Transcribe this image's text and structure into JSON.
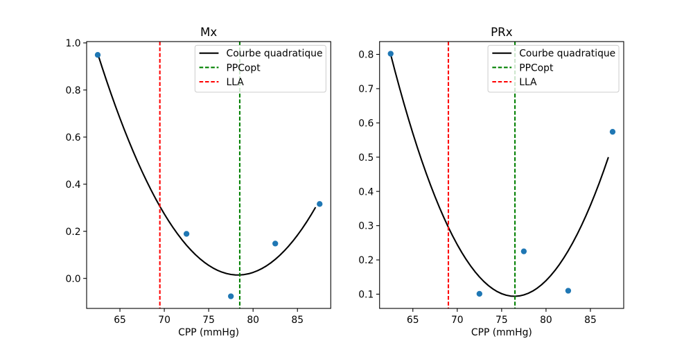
{
  "figure": {
    "background": "#ffffff"
  },
  "style": {
    "point_color": "#1f77b4",
    "curve_color": "#000000",
    "ppcopt_color": "#008000",
    "lla_color": "#ff0000",
    "legend_edge_color": "#cccccc",
    "text_color": "#000000",
    "axes_color": "#000000"
  },
  "chart_data": [
    {
      "type": "scatter",
      "title": "Mx",
      "xlabel": "CPP (mmHg)",
      "ylabel": "",
      "points": {
        "x": [
          62.5,
          72.5,
          77.5,
          82.5,
          87.5
        ],
        "y": [
          0.949,
          0.189,
          -0.076,
          0.148,
          0.316
        ]
      },
      "fit": {
        "kind": "quadratic",
        "x_start": 62.5,
        "x_end": 87.0,
        "x_step": 0.5
      },
      "vlines": {
        "ppcopt": 78.5,
        "lla": 69.5
      },
      "xlim": [
        61.25,
        88.75
      ],
      "ylim": [
        -0.1275,
        1.0056
      ],
      "xticks": {
        "values": [
          65,
          70,
          75,
          80,
          85
        ],
        "labels": [
          "65",
          "70",
          "75",
          "80",
          "85"
        ]
      },
      "yticks": {
        "values": [
          0.0,
          0.2,
          0.4,
          0.6,
          0.8,
          1.0
        ],
        "labels": [
          "0.0",
          "0.2",
          "0.4",
          "0.6",
          "0.8",
          "1.0"
        ]
      },
      "legend": {
        "position": "upper right",
        "entries": [
          {
            "label": "Courbe quadratique",
            "style": "curve",
            "dashed": false
          },
          {
            "label": "PPCopt",
            "style": "ppcopt",
            "dashed": true
          },
          {
            "label": "LLA",
            "style": "lla",
            "dashed": true
          }
        ]
      },
      "grid": false
    },
    {
      "type": "scatter",
      "title": "PRx",
      "xlabel": "CPP (mmHg)",
      "ylabel": "",
      "points": {
        "x": [
          62.5,
          72.5,
          77.5,
          82.5,
          87.5
        ],
        "y": [
          0.802,
          0.101,
          0.225,
          0.11,
          0.574
        ]
      },
      "fit": {
        "kind": "quadratic",
        "x_start": 62.5,
        "x_end": 87.0,
        "x_step": 0.5
      },
      "vlines": {
        "ppcopt": 76.5,
        "lla": 69.0
      },
      "xlim": [
        61.25,
        88.75
      ],
      "ylim": [
        0.0584,
        0.8374
      ],
      "xticks": {
        "values": [
          65,
          70,
          75,
          80,
          85
        ],
        "labels": [
          "65",
          "70",
          "75",
          "80",
          "85"
        ]
      },
      "yticks": {
        "values": [
          0.1,
          0.2,
          0.3,
          0.4,
          0.5,
          0.6,
          0.7,
          0.8
        ],
        "labels": [
          "0.1",
          "0.2",
          "0.3",
          "0.4",
          "0.5",
          "0.6",
          "0.7",
          "0.8"
        ]
      },
      "legend": {
        "position": "upper right",
        "entries": [
          {
            "label": "Courbe quadratique",
            "style": "curve",
            "dashed": false
          },
          {
            "label": "PPCopt",
            "style": "ppcopt",
            "dashed": true
          },
          {
            "label": "LLA",
            "style": "lla",
            "dashed": true
          }
        ]
      },
      "grid": false
    }
  ]
}
